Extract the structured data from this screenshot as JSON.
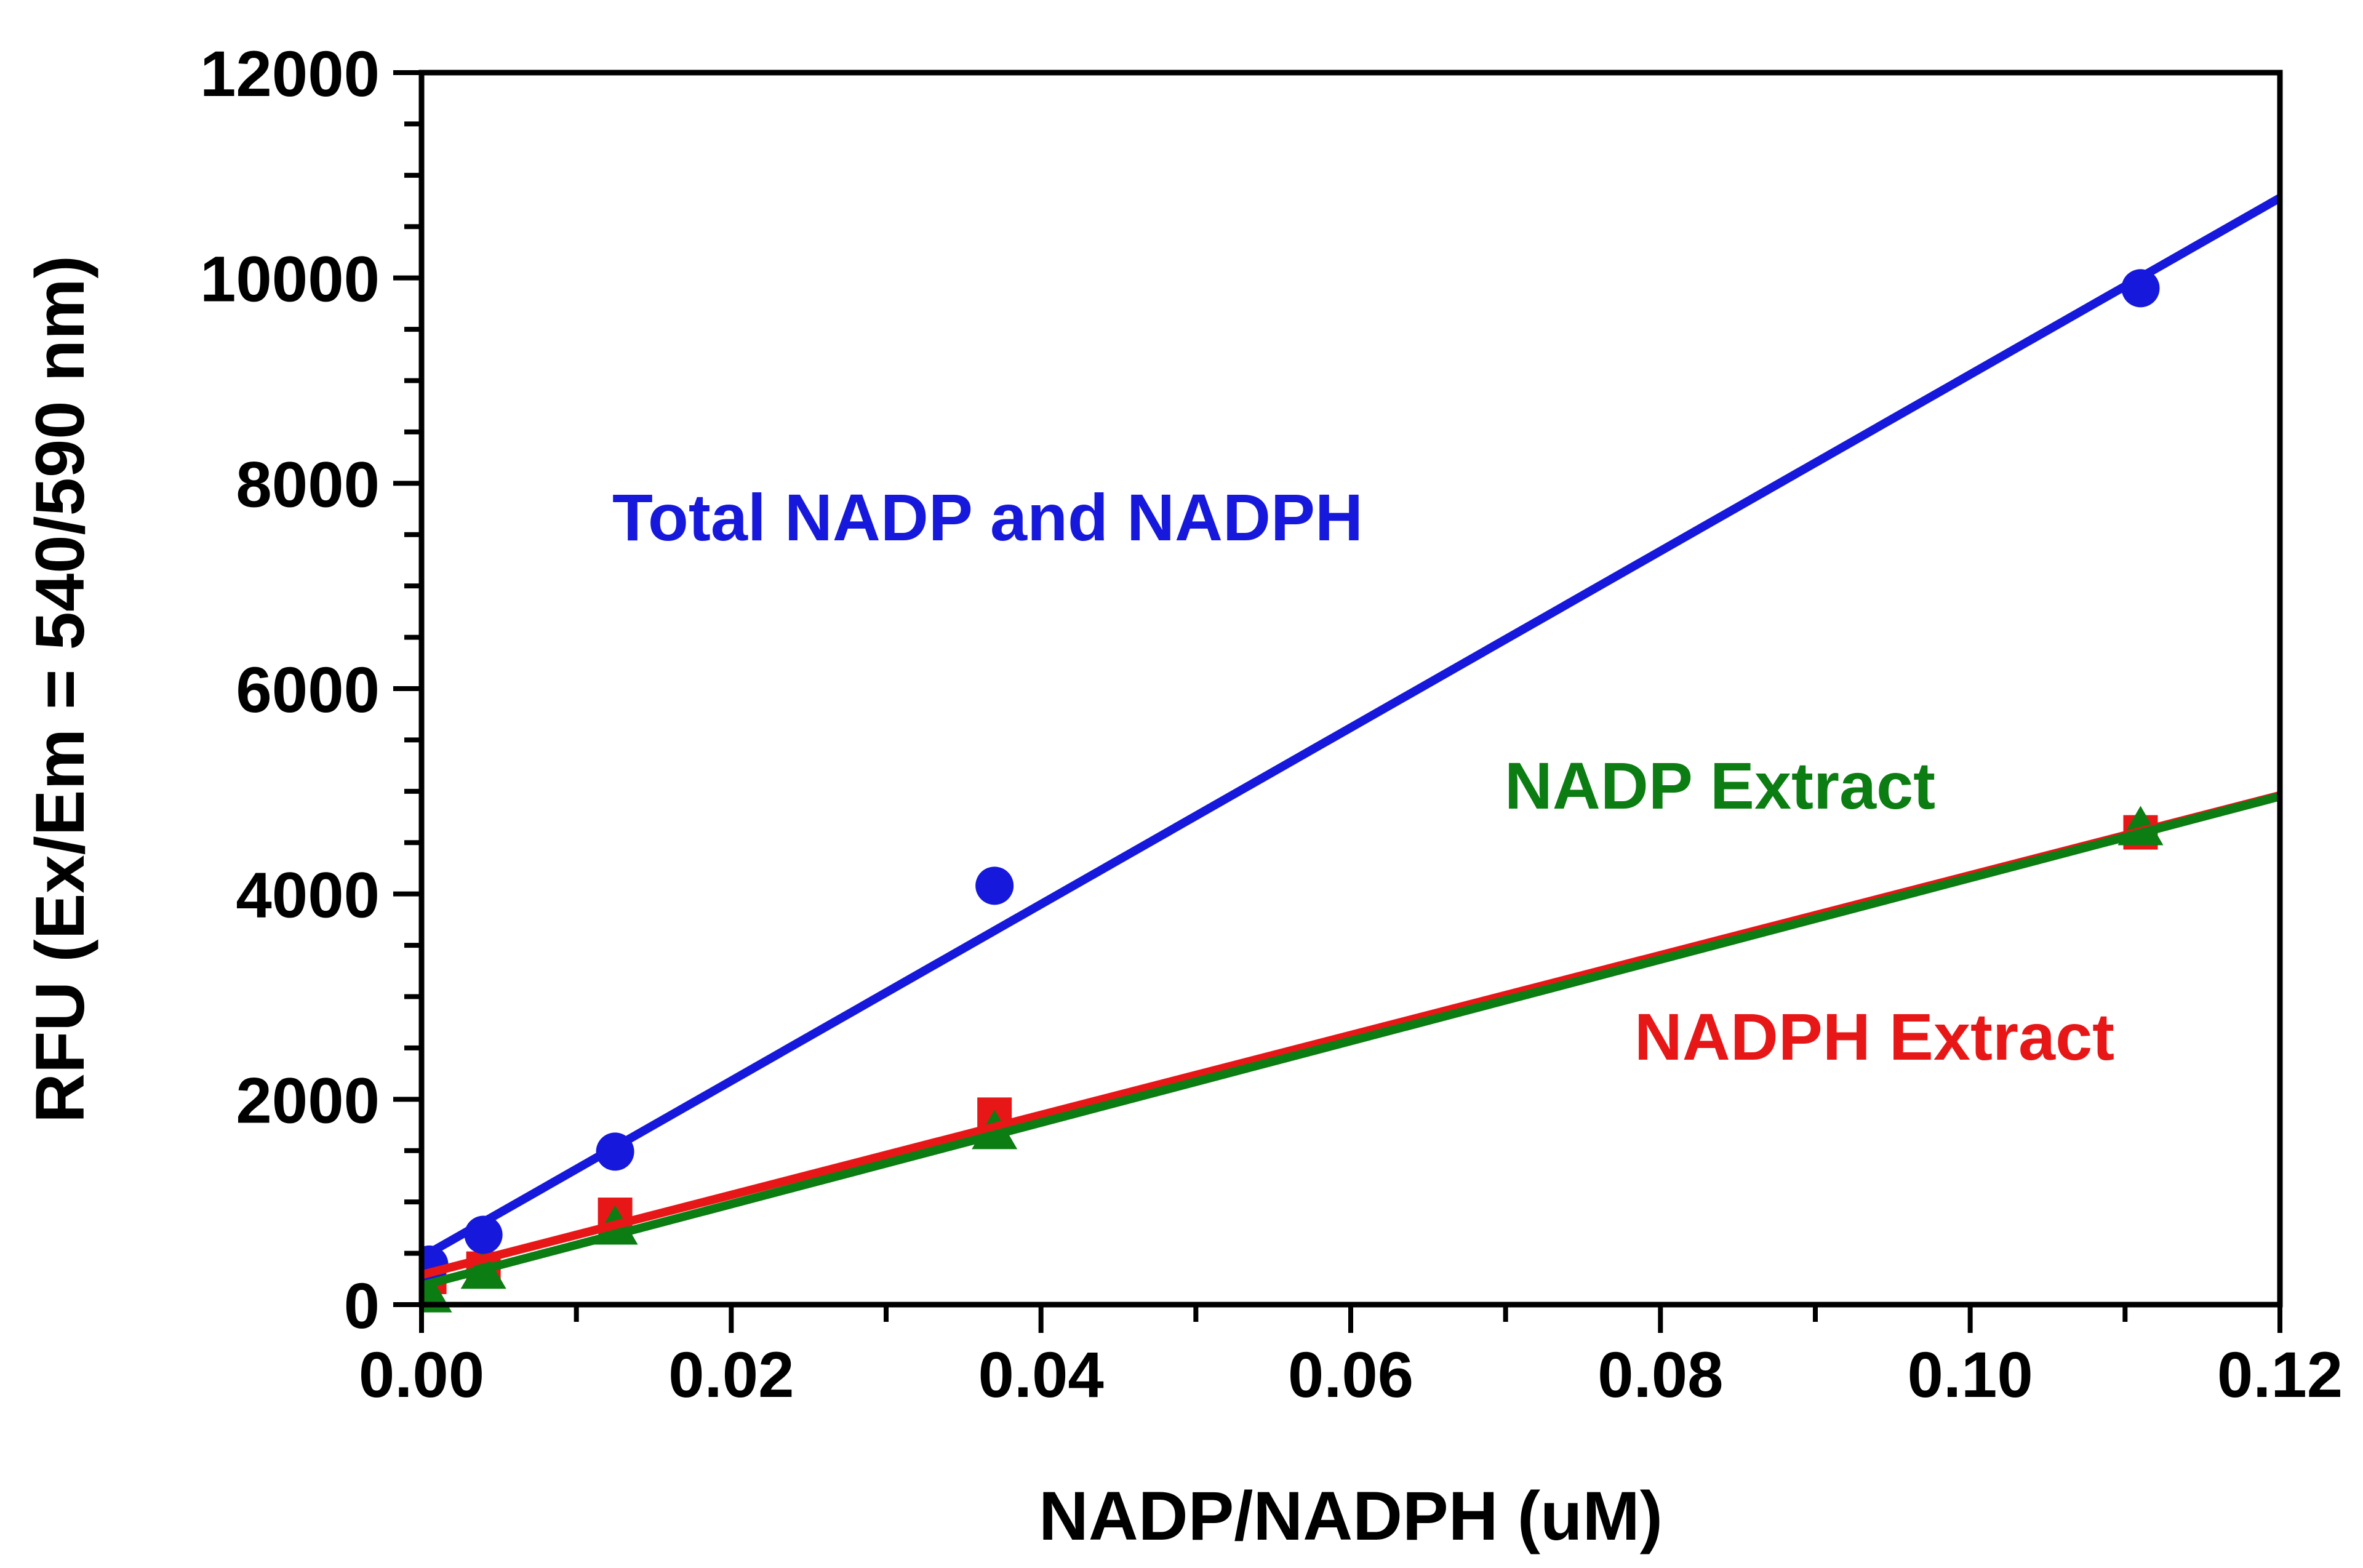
{
  "chart_data": {
    "type": "scatter",
    "title": "",
    "xlabel": "NADP/NADPH (uM)",
    "ylabel": "RFU (Ex/Em = 540/590 nm)",
    "xlim": [
      0,
      0.12
    ],
    "ylim": [
      0,
      12000
    ],
    "grid": false,
    "legend_position": "inline-colored-annotations",
    "x_axis": {
      "major_ticks": [
        0.0,
        0.02,
        0.04,
        0.06,
        0.08,
        0.1,
        0.12
      ],
      "major_tick_labels": [
        "0.00",
        "0.02",
        "0.04",
        "0.06",
        "0.08",
        "0.10",
        "0.12"
      ],
      "minor_ticks": [
        0.01,
        0.03,
        0.05,
        0.07,
        0.09,
        0.11
      ]
    },
    "y_axis": {
      "major_ticks": [
        0,
        2000,
        4000,
        6000,
        8000,
        10000,
        12000
      ],
      "major_tick_labels": [
        "0",
        "2000",
        "4000",
        "6000",
        "8000",
        "10000",
        "12000"
      ],
      "minor_tick_step": 500
    },
    "series": [
      {
        "name": "Total NADP and NADPH",
        "marker": "circle",
        "color": "#1618DC",
        "points": [
          [
            0.0005,
            390
          ],
          [
            0.004,
            680
          ],
          [
            0.0125,
            1490
          ],
          [
            0.037,
            4080
          ],
          [
            0.111,
            9900
          ]
        ],
        "fit_line": {
          "x": [
            0,
            0.12
          ],
          "y": [
            460,
            10780
          ]
        }
      },
      {
        "name": "NADPH Extract",
        "marker": "square",
        "color": "#E81717",
        "points": [
          [
            0.0005,
            270
          ],
          [
            0.004,
            350
          ],
          [
            0.0125,
            875
          ],
          [
            0.037,
            1850
          ],
          [
            0.111,
            4600
          ]
        ],
        "fit_line": {
          "x": [
            0,
            0.12
          ],
          "y": [
            290,
            4960
          ]
        }
      },
      {
        "name": "NADP Extract",
        "marker": "triangle",
        "color": "#0B7D12",
        "points": [
          [
            0.0005,
            110
          ],
          [
            0.004,
            340
          ],
          [
            0.0125,
            770
          ],
          [
            0.037,
            1700
          ],
          [
            0.111,
            4660
          ]
        ],
        "fit_line": {
          "x": [
            0,
            0.12
          ],
          "y": [
            185,
            4950
          ]
        }
      }
    ]
  }
}
